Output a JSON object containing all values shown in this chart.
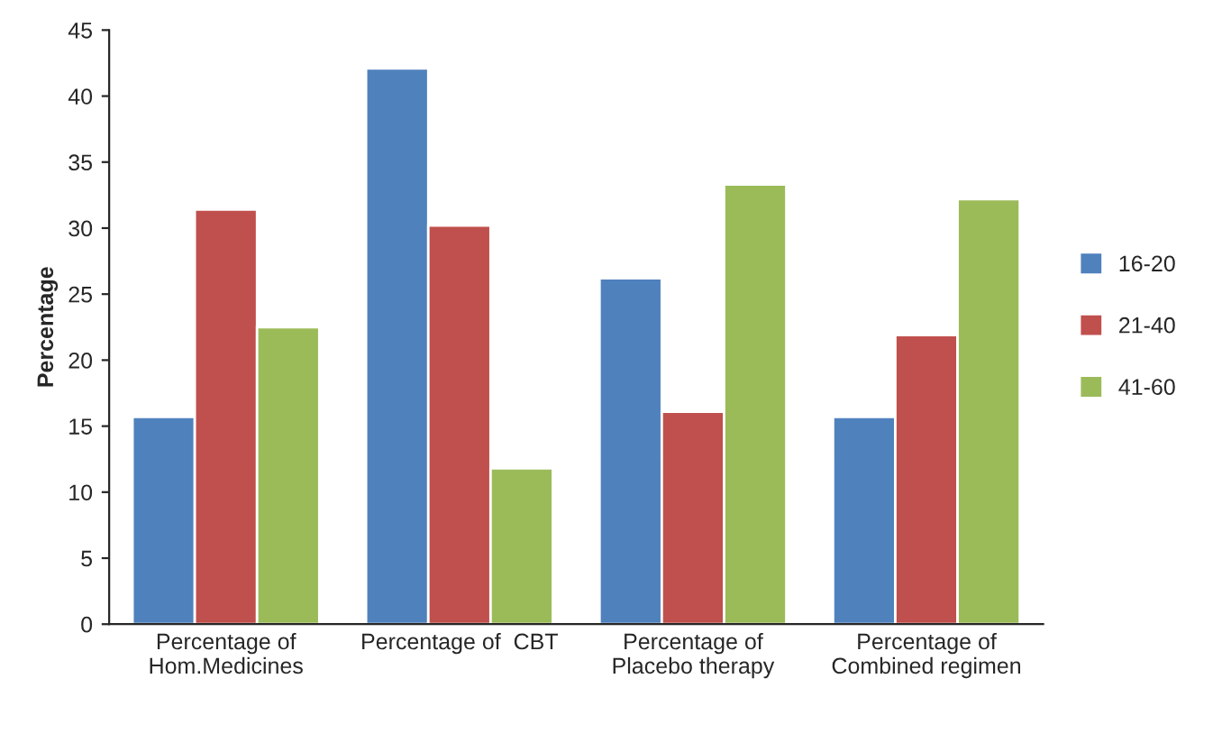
{
  "chart_data": {
    "type": "bar",
    "ylabel": "Percentage",
    "categories": [
      "Percentage of\nHom.Medicines",
      "Percentage of  CBT",
      "Percentage of\nPlacebo therapy",
      "Percentage of\nCombined regimen"
    ],
    "series": [
      {
        "name": "16-20",
        "color": "#4f81bd",
        "values": [
          15.7,
          42.1,
          26.2,
          15.7
        ]
      },
      {
        "name": "21-40",
        "color": "#c0504d",
        "values": [
          31.4,
          30.2,
          16.1,
          21.9
        ]
      },
      {
        "name": "41-60",
        "color": "#9bbb59",
        "values": [
          22.5,
          11.8,
          33.3,
          32.2
        ]
      }
    ],
    "ylim": [
      0,
      45
    ],
    "yticks": [
      0,
      5,
      10,
      15,
      20,
      25,
      30,
      35,
      40,
      45
    ],
    "grid": false,
    "legend": "right"
  }
}
